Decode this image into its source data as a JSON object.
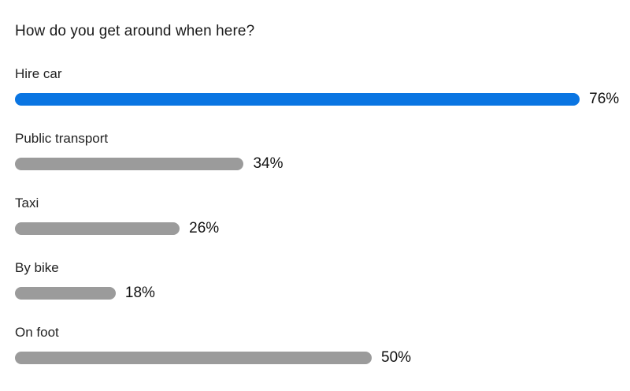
{
  "poll": {
    "question": "How do you get around when here?",
    "selected_color": "#0a75e2",
    "default_color": "#9b9b9b",
    "options": [
      {
        "label": "Hire car",
        "percent": 76,
        "percent_label": "76%",
        "selected": true
      },
      {
        "label": "Public transport",
        "percent": 34,
        "percent_label": "34%",
        "selected": false
      },
      {
        "label": "Taxi",
        "percent": 26,
        "percent_label": "26%",
        "selected": false
      },
      {
        "label": "By bike",
        "percent": 18,
        "percent_label": "18%",
        "selected": false
      },
      {
        "label": "On foot",
        "percent": 50,
        "percent_label": "50%",
        "selected": false
      }
    ]
  }
}
